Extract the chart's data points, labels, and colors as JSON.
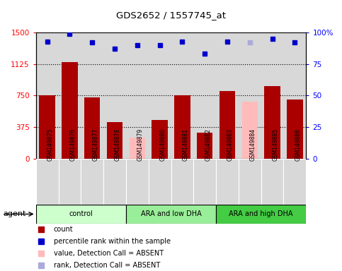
{
  "title": "GDS2652 / 1557745_at",
  "samples": [
    "GSM149875",
    "GSM149876",
    "GSM149877",
    "GSM149878",
    "GSM149879",
    "GSM149880",
    "GSM149881",
    "GSM149882",
    "GSM149883",
    "GSM149884",
    "GSM149885",
    "GSM149886"
  ],
  "bar_values": [
    750,
    1150,
    730,
    430,
    250,
    460,
    750,
    305,
    800,
    680,
    860,
    700
  ],
  "bar_absent": [
    false,
    false,
    false,
    false,
    true,
    false,
    false,
    false,
    false,
    true,
    false,
    false
  ],
  "percentile_values": [
    93,
    99,
    92,
    87,
    90,
    90,
    93,
    83,
    93,
    92,
    95,
    92
  ],
  "percentile_absent": [
    false,
    false,
    false,
    false,
    false,
    false,
    false,
    false,
    false,
    true,
    false,
    false
  ],
  "ylim_left": [
    0,
    1500
  ],
  "ylim_right": [
    0,
    100
  ],
  "yticks_left": [
    0,
    375,
    750,
    1125,
    1500
  ],
  "yticks_right": [
    0,
    25,
    50,
    75,
    100
  ],
  "groups": [
    {
      "label": "control",
      "start": 0,
      "end": 4,
      "color": "#ccffcc"
    },
    {
      "label": "ARA and low DHA",
      "start": 4,
      "end": 8,
      "color": "#99ee99"
    },
    {
      "label": "ARA and high DHA",
      "start": 8,
      "end": 12,
      "color": "#44cc44"
    }
  ],
  "bar_color_present": "#aa0000",
  "bar_color_absent": "#ffbbbb",
  "dot_color_present": "#0000cc",
  "dot_color_absent": "#aaaadd",
  "plot_bg": "#d8d8d8",
  "legend_items": [
    {
      "label": "count",
      "color": "#aa0000"
    },
    {
      "label": "percentile rank within the sample",
      "color": "#0000cc"
    },
    {
      "label": "value, Detection Call = ABSENT",
      "color": "#ffbbbb"
    },
    {
      "label": "rank, Detection Call = ABSENT",
      "color": "#aaaadd"
    }
  ]
}
